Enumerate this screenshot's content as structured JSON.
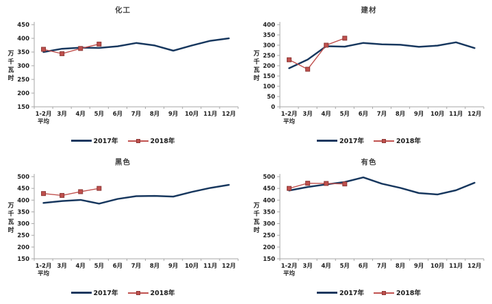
{
  "page": {
    "background": "#ffffff"
  },
  "colors": {
    "series_2017": "#17375E",
    "series_2018": "#C0504D",
    "marker_border": "#8C3836",
    "axis_line": "#A6A6A6",
    "tick_label": "#1f1f1f",
    "title": "#404040"
  },
  "legend": {
    "items": [
      {
        "label": "2017年"
      },
      {
        "label": "2018年"
      }
    ]
  },
  "chart_data": [
    {
      "type": "line",
      "title": "化工",
      "ylabel": "万千瓦时",
      "ylim": [
        150,
        450
      ],
      "ytick_step": 50,
      "grid": false,
      "legend_position": "bottom",
      "categories": [
        "1-2月\n平均",
        "3月",
        "4月",
        "5月",
        "6月",
        "7月",
        "8月",
        "9月",
        "10月",
        "11月",
        "12月"
      ],
      "series": [
        {
          "name": "2017年",
          "values": [
            350,
            362,
            366,
            365,
            371,
            383,
            374,
            355,
            374,
            391,
            400
          ]
        },
        {
          "name": "2018年",
          "values": [
            360,
            344,
            363,
            379
          ]
        }
      ]
    },
    {
      "type": "line",
      "title": "建材",
      "ylabel": "万千瓦时",
      "ylim": [
        0,
        400
      ],
      "ytick_step": 50,
      "grid": false,
      "legend_position": "bottom",
      "categories": [
        "1-2月\n平均",
        "3月",
        "4月",
        "5月",
        "6月",
        "7月",
        "8月",
        "9月",
        "10月",
        "11月",
        "12月"
      ],
      "series": [
        {
          "name": "2017年",
          "values": [
            188,
            230,
            295,
            293,
            311,
            304,
            302,
            292,
            298,
            314,
            286
          ]
        },
        {
          "name": "2018年",
          "values": [
            229,
            183,
            300,
            334
          ]
        }
      ]
    },
    {
      "type": "line",
      "title": "黑色",
      "ylabel": "万千瓦时",
      "ylim": [
        150,
        500
      ],
      "ytick_step": 50,
      "grid": false,
      "legend_position": "bottom",
      "categories": [
        "1-2月\n平均",
        "3月",
        "4月",
        "5月",
        "6月",
        "7月",
        "8月",
        "9月",
        "10月",
        "11月",
        "12月"
      ],
      "series": [
        {
          "name": "2017年",
          "values": [
            388,
            396,
            401,
            385,
            405,
            417,
            418,
            415,
            435,
            452,
            465
          ]
        },
        {
          "name": "2018年",
          "values": [
            428,
            420,
            436,
            450
          ]
        }
      ]
    },
    {
      "type": "line",
      "title": "有色",
      "ylabel": "万千瓦时",
      "ylim": [
        150,
        500
      ],
      "ytick_step": 50,
      "grid": false,
      "legend_position": "bottom",
      "categories": [
        "1-2月\n平均",
        "3月",
        "4月",
        "5月",
        "6月",
        "7月",
        "8月",
        "9月",
        "10月",
        "11月",
        "12月"
      ],
      "series": [
        {
          "name": "2017年",
          "values": [
            441,
            456,
            467,
            477,
            497,
            470,
            452,
            430,
            424,
            442,
            474
          ]
        },
        {
          "name": "2018年",
          "values": [
            450,
            472,
            471,
            469
          ]
        }
      ]
    }
  ]
}
